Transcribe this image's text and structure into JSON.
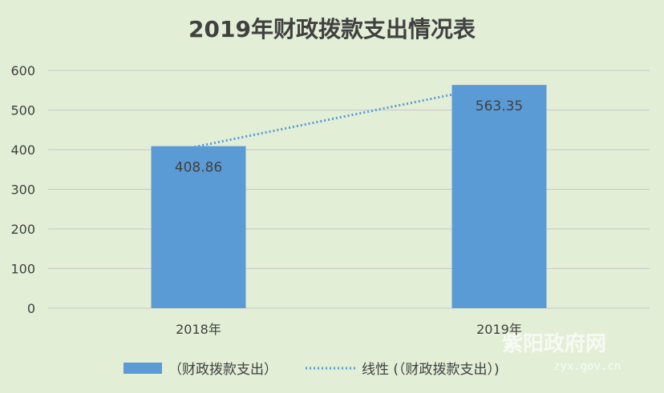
{
  "chart_data": {
    "type": "bar",
    "title": "2019年财政拨款支出情况表",
    "categories": [
      "2018年",
      "2019年"
    ],
    "series": [
      {
        "name": "（财政拨款支出）",
        "values": [
          408.86,
          563.35
        ]
      }
    ],
    "data_labels": [
      "408.86",
      "563.35"
    ],
    "trendline": {
      "type": "linear",
      "name": "线性 (（财政拨款支出）)"
    },
    "ylim": [
      0,
      600
    ],
    "yticks": [
      0,
      100,
      200,
      300,
      400,
      500,
      600
    ],
    "grid": true,
    "legend_position": "bottom",
    "colors": {
      "bar": "#5b9bd5",
      "trend": "#5b9bd5",
      "grid": "#c8c8c8",
      "background": "#e2eed6",
      "text": "#404040"
    }
  },
  "watermark": {
    "main": "紫阳政府网",
    "sub": "zyx.gov.cn"
  }
}
